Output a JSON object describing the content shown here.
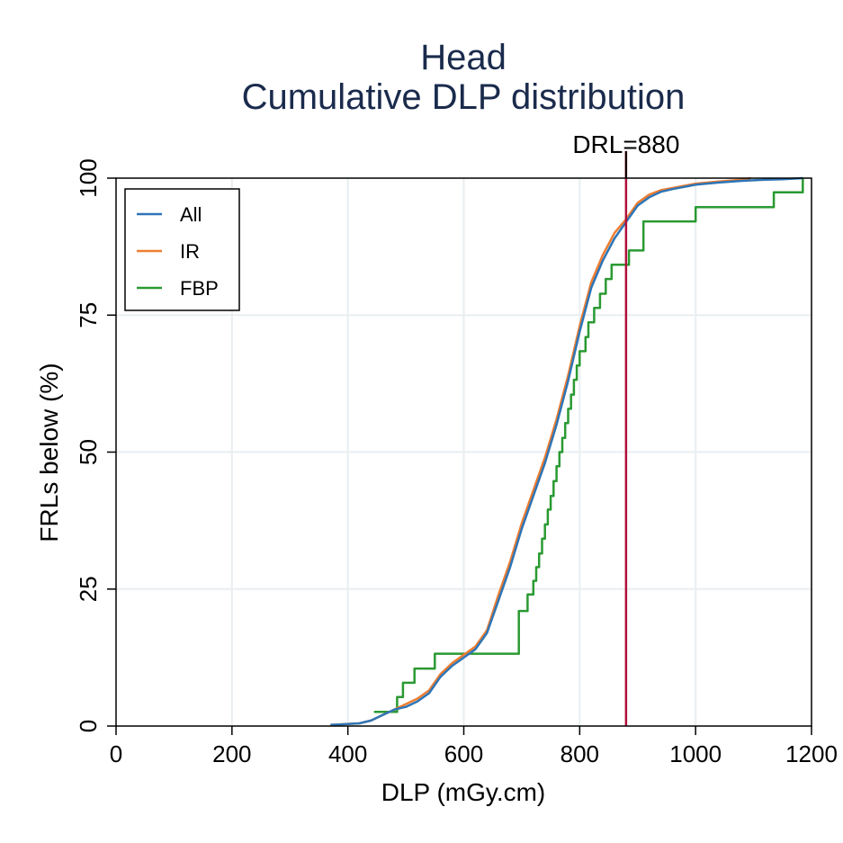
{
  "chart_data": {
    "type": "line",
    "title": "Head",
    "subtitle": "Cumulative DLP distribution",
    "xlabel": "DLP (mGy.cm)",
    "ylabel": "FRLs below (%)",
    "xlim": [
      0,
      1200
    ],
    "ylim": [
      0,
      100
    ],
    "x_ticks": [
      0,
      200,
      400,
      600,
      800,
      1000,
      1200
    ],
    "y_ticks": [
      0,
      25,
      50,
      75,
      100
    ],
    "x_tick_labels": [
      "0",
      "200",
      "400",
      "600",
      "800",
      "1000",
      "1200"
    ],
    "y_tick_labels": [
      "0",
      "25",
      "50",
      "75",
      "100"
    ],
    "grid": true,
    "legend_position": "top-left",
    "reference_line": {
      "x": 880,
      "label": "DRL=880",
      "color": "#b0103a"
    },
    "series": [
      {
        "name": "All",
        "color": "#2e75b6",
        "points": [
          [
            370,
            0.2
          ],
          [
            420,
            0.5
          ],
          [
            440,
            1
          ],
          [
            460,
            2
          ],
          [
            480,
            3
          ],
          [
            500,
            3.5
          ],
          [
            520,
            4.5
          ],
          [
            540,
            6
          ],
          [
            560,
            9
          ],
          [
            580,
            11
          ],
          [
            600,
            12.5
          ],
          [
            620,
            14
          ],
          [
            640,
            17
          ],
          [
            660,
            23
          ],
          [
            680,
            29
          ],
          [
            700,
            36
          ],
          [
            720,
            42
          ],
          [
            740,
            48
          ],
          [
            760,
            55
          ],
          [
            780,
            63
          ],
          [
            800,
            72
          ],
          [
            820,
            80
          ],
          [
            840,
            85
          ],
          [
            860,
            89
          ],
          [
            880,
            92
          ],
          [
            900,
            95
          ],
          [
            920,
            96.5
          ],
          [
            940,
            97.5
          ],
          [
            960,
            98
          ],
          [
            1000,
            98.8
          ],
          [
            1040,
            99.2
          ],
          [
            1080,
            99.5
          ],
          [
            1120,
            99.7
          ],
          [
            1150,
            99.8
          ],
          [
            1185,
            100
          ]
        ]
      },
      {
        "name": "IR",
        "color": "#ed7d31",
        "points": [
          [
            370,
            0.2
          ],
          [
            420,
            0.5
          ],
          [
            440,
            1
          ],
          [
            460,
            2
          ],
          [
            480,
            3
          ],
          [
            500,
            4
          ],
          [
            520,
            5
          ],
          [
            540,
            6.5
          ],
          [
            560,
            9.5
          ],
          [
            580,
            11.5
          ],
          [
            600,
            13
          ],
          [
            620,
            14.5
          ],
          [
            640,
            17.5
          ],
          [
            660,
            24
          ],
          [
            680,
            30
          ],
          [
            700,
            37
          ],
          [
            720,
            43
          ],
          [
            740,
            49
          ],
          [
            760,
            56
          ],
          [
            780,
            64
          ],
          [
            800,
            73
          ],
          [
            820,
            81
          ],
          [
            840,
            86
          ],
          [
            860,
            90
          ],
          [
            880,
            92.5
          ],
          [
            900,
            95.5
          ],
          [
            920,
            97
          ],
          [
            940,
            97.8
          ],
          [
            960,
            98.2
          ],
          [
            1000,
            99
          ],
          [
            1040,
            99.4
          ],
          [
            1080,
            99.7
          ],
          [
            1095,
            100
          ]
        ]
      },
      {
        "name": "FBP",
        "color": "#2a9a32",
        "points": [
          [
            445,
            2.6
          ],
          [
            485,
            2.6
          ],
          [
            485,
            5.3
          ],
          [
            495,
            5.3
          ],
          [
            495,
            7.9
          ],
          [
            515,
            7.9
          ],
          [
            515,
            10.5
          ],
          [
            550,
            10.5
          ],
          [
            550,
            13.2
          ],
          [
            695,
            13.2
          ],
          [
            695,
            21
          ],
          [
            710,
            21
          ],
          [
            710,
            24
          ],
          [
            720,
            24
          ],
          [
            720,
            26.5
          ],
          [
            725,
            26.5
          ],
          [
            725,
            29
          ],
          [
            730,
            29
          ],
          [
            730,
            31.5
          ],
          [
            735,
            31.5
          ],
          [
            735,
            34.2
          ],
          [
            740,
            34.2
          ],
          [
            740,
            36.8
          ],
          [
            745,
            36.8
          ],
          [
            745,
            39.5
          ],
          [
            750,
            39.5
          ],
          [
            750,
            42
          ],
          [
            755,
            42
          ],
          [
            755,
            44.7
          ],
          [
            760,
            44.7
          ],
          [
            760,
            47.4
          ],
          [
            765,
            47.4
          ],
          [
            765,
            50
          ],
          [
            770,
            50
          ],
          [
            770,
            52.6
          ],
          [
            775,
            52.6
          ],
          [
            775,
            55.3
          ],
          [
            780,
            55.3
          ],
          [
            780,
            57.9
          ],
          [
            785,
            57.9
          ],
          [
            785,
            60.5
          ],
          [
            790,
            60.5
          ],
          [
            790,
            63.2
          ],
          [
            795,
            63.2
          ],
          [
            795,
            65.8
          ],
          [
            800,
            65.8
          ],
          [
            800,
            68.4
          ],
          [
            810,
            68.4
          ],
          [
            810,
            71
          ],
          [
            815,
            71
          ],
          [
            815,
            73.7
          ],
          [
            825,
            73.7
          ],
          [
            825,
            76.3
          ],
          [
            835,
            76.3
          ],
          [
            835,
            78.9
          ],
          [
            845,
            78.9
          ],
          [
            845,
            81.6
          ],
          [
            855,
            81.6
          ],
          [
            855,
            84.2
          ],
          [
            885,
            84.2
          ],
          [
            885,
            86.8
          ],
          [
            910,
            86.8
          ],
          [
            910,
            92.1
          ],
          [
            1000,
            92.1
          ],
          [
            1000,
            94.7
          ],
          [
            1135,
            94.7
          ],
          [
            1135,
            97.4
          ],
          [
            1185,
            97.4
          ],
          [
            1185,
            100
          ]
        ]
      }
    ]
  }
}
